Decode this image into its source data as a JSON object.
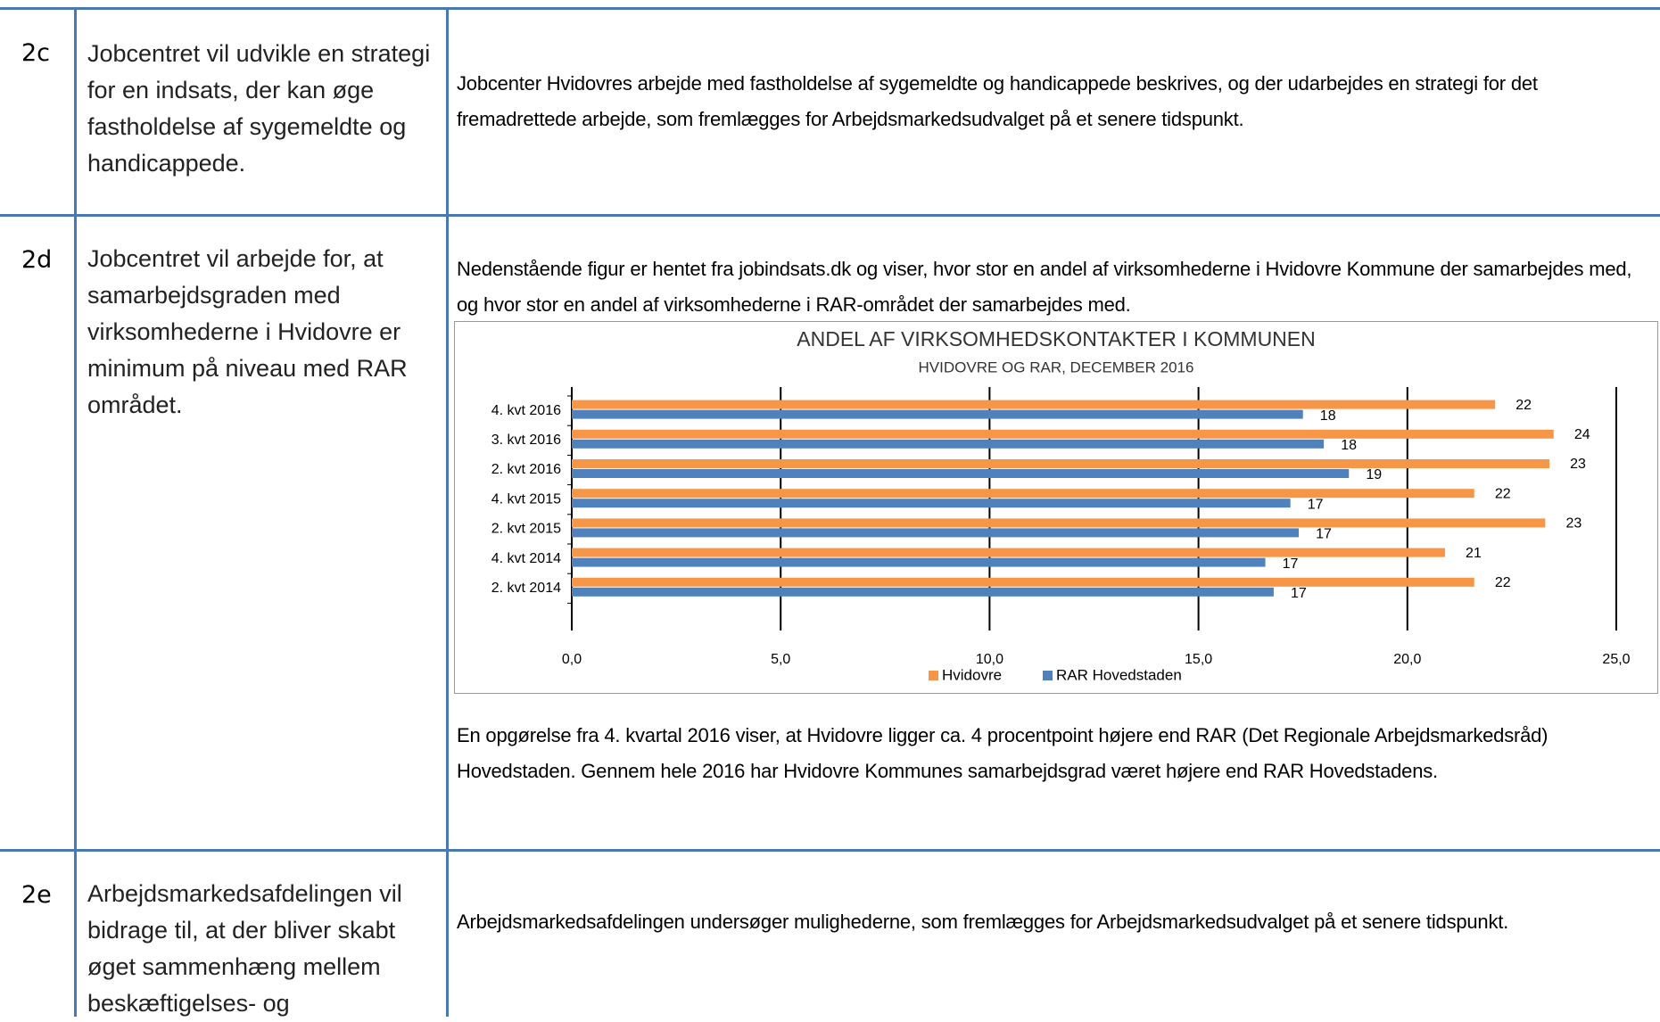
{
  "rows": [
    {
      "id": "2c",
      "goal": "Jobcentret vil udvikle en strategi for en indsats, der kan øge fastholdelse af sygemeldte og handicappede.",
      "text": "Jobcenter Hvidovres arbejde med fastholdelse af sygemeldte og handicappede beskrives, og der udarbejdes en strategi for det fremadrettede arbejde, som fremlægges for Arbejdsmarkedsudvalget på et senere tidspunkt."
    },
    {
      "id": "2d",
      "goal": "Jobcentret vil arbejde for, at samarbejdsgraden med virksomhederne i Hvidovre er minimum på niveau med RAR området.",
      "text": "Nedenstående figur er hentet fra jobindsats.dk og viser, hvor stor en andel af virksomhederne i Hvidovre Kommune der samarbejdes med, og hvor stor en andel af virksomhederne i RAR-området der samarbejdes med.",
      "text_after": "En opgørelse fra 4. kvartal 2016 viser, at Hvidovre ligger ca. 4 procentpoint højere end RAR (Det Regionale Arbejdsmarkedsråd) Hovedstaden. Gennem hele 2016 har Hvidovre Kommunes samarbejdsgrad været højere end RAR Hovedstadens."
    },
    {
      "id": "2e",
      "goal": "Arbejdsmarkedsafdelingen vil bidrage til, at der bliver skabt øget sammenhæng mellem beskæftigelses- og",
      "text": "Arbejdsmarkedsafdelingen undersøger mulighederne, som fremlægges for Arbejdsmarkedsudvalget på et senere tidspunkt."
    }
  ],
  "chart_data": {
    "type": "hbar",
    "title": "ANDEL AF VIRKSOMHEDSKONTAKTER I KOMMUNEN",
    "subtitle": "HVIDOVRE OG RAR, DECEMBER 2016",
    "categories": [
      "4. kvt 2016",
      "3. kvt 2016",
      "2. kvt 2016",
      "4. kvt 2015",
      "2. kvt 2015",
      "4. kvt 2014",
      "2. kvt 2014"
    ],
    "series": [
      {
        "name": "Hvidovre",
        "color": "#f79646",
        "values": [
          22.1,
          23.5,
          23.4,
          21.6,
          23.3,
          20.9,
          21.6
        ],
        "value_labels": [
          "22",
          "24",
          "23",
          "22",
          "23",
          "21",
          "22"
        ]
      },
      {
        "name": "RAR Hovedstaden",
        "color": "#4f81bd",
        "values": [
          17.5,
          18.0,
          18.6,
          17.2,
          17.4,
          16.6,
          16.8
        ],
        "value_labels": [
          "18",
          "18",
          "19",
          "17",
          "17",
          "17",
          "17"
        ]
      }
    ],
    "xlim": [
      0,
      25
    ],
    "xticks": [
      {
        "value": 0,
        "label": "0,0"
      },
      {
        "value": 5,
        "label": "5,0"
      },
      {
        "value": 10,
        "label": "10,0"
      },
      {
        "value": 15,
        "label": "15,0"
      },
      {
        "value": 20,
        "label": "20,0"
      },
      {
        "value": 25,
        "label": "25,0"
      }
    ],
    "grid": true
  }
}
